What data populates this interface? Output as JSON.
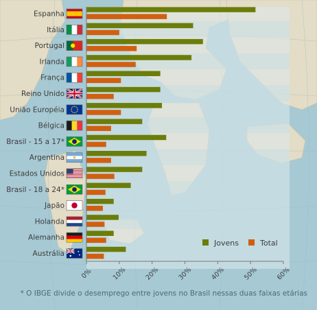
{
  "colors": {
    "jovens": "#6b7d0a",
    "total": "#d06010",
    "text": "#3c3c3c",
    "footnote": "#4d6a74"
  },
  "chart_data": {
    "type": "bar",
    "orientation": "horizontal",
    "categories": [
      "Espanha",
      "Itália",
      "Portugal",
      "Irlanda",
      "França",
      "Reino Unido",
      "União Européia",
      "Bélgica",
      "Brasil - 15 a 17*",
      "Argentina",
      "Estados Unidos",
      "Brasil - 18 a 24*",
      "Japão",
      "Holanda",
      "Alemanha",
      "Austrália"
    ],
    "flags": [
      "spain",
      "italy",
      "portugal",
      "ireland",
      "france",
      "uk",
      "eu",
      "belgium",
      "brazil",
      "argentina",
      "usa",
      "brazil",
      "japan",
      "netherlands",
      "germany",
      "australia"
    ],
    "series": [
      {
        "name": "Jovens",
        "values": [
          51.5,
          32.5,
          35.5,
          32.0,
          22.5,
          22.5,
          23.0,
          17.0,
          24.3,
          18.3,
          17.0,
          13.5,
          8.3,
          9.8,
          8.3,
          12.0
        ]
      },
      {
        "name": "Total",
        "values": [
          24.5,
          10.0,
          15.3,
          15.0,
          10.5,
          8.3,
          10.5,
          7.5,
          6.0,
          7.5,
          8.5,
          5.8,
          5.0,
          5.5,
          6.0,
          5.3
        ]
      }
    ],
    "xlim": [
      0,
      60
    ],
    "xticks": [
      "0%",
      "10%",
      "20%",
      "30%",
      "40%",
      "50%",
      "60%"
    ],
    "legend_position": "bottom-right",
    "footnote": "* O IBGE divide o desemprego entre jovens no Brasil nessas duas faixas etárias"
  }
}
